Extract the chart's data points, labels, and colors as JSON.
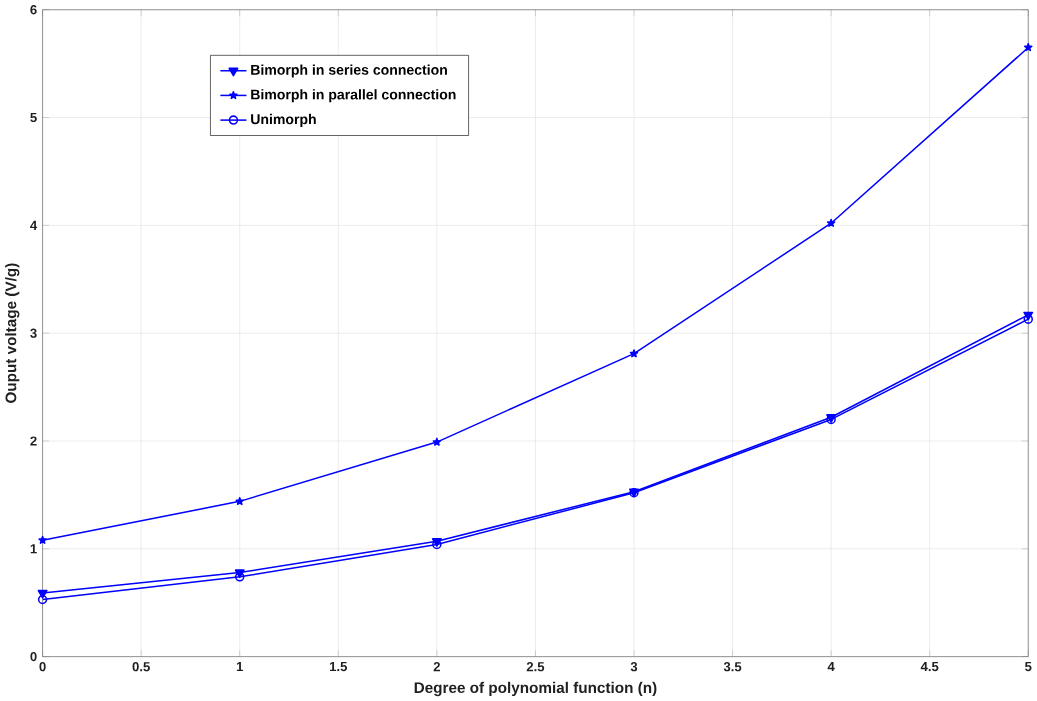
{
  "chart_data": {
    "type": "line",
    "xlabel": "Degree of polynomial function (n)",
    "ylabel": "Ouput voltage (V/g)",
    "x": [
      0,
      1,
      2,
      3,
      4,
      5
    ],
    "series": [
      {
        "name": "Bimorph in series connection",
        "color": "#0000ff",
        "marker": "triangle",
        "values": [
          0.59,
          0.78,
          1.07,
          1.53,
          2.22,
          3.17
        ]
      },
      {
        "name": "Bimorph in parallel connection",
        "color": "#0000ff",
        "marker": "star",
        "values": [
          1.08,
          1.44,
          1.99,
          2.81,
          4.02,
          5.65
        ]
      },
      {
        "name": "Unimorph",
        "color": "#0000ff",
        "marker": "circle",
        "values": [
          0.53,
          0.74,
          1.04,
          1.52,
          2.2,
          3.13
        ]
      }
    ],
    "xlim": [
      0,
      5
    ],
    "ylim": [
      0,
      6
    ],
    "xticks": [
      0,
      0.5,
      1,
      1.5,
      2,
      2.5,
      3,
      3.5,
      4,
      4.5,
      5
    ],
    "yticks": [
      0,
      1,
      2,
      3,
      4,
      5,
      6
    ],
    "grid": true,
    "legend": "top left",
    "line_style": "solid"
  }
}
